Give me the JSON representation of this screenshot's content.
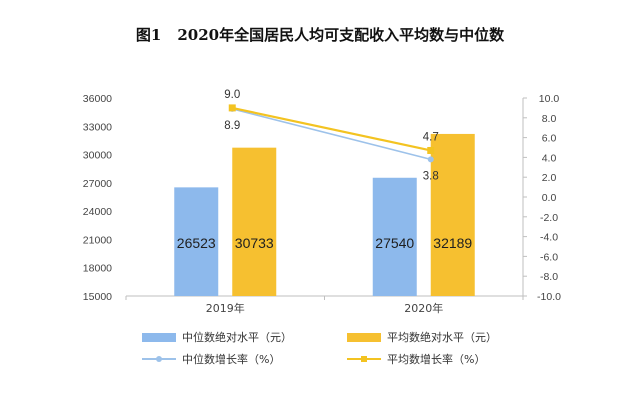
{
  "title": {
    "number": "图1",
    "text": "2020年全国居民人均可支配收入平均数与中位数"
  },
  "colors": {
    "median_bar": "#8db9ec",
    "mean_bar": "#f6c030",
    "median_line": "#9dc2ea",
    "mean_line": "#f3c321",
    "axis": "#bfbfbf"
  },
  "chart_data": {
    "type": "bar",
    "categories": [
      "2019年",
      "2020年"
    ],
    "series": [
      {
        "name": "中位数绝对水平（元）",
        "type": "bar",
        "axis": "left",
        "values": [
          26523,
          27540
        ]
      },
      {
        "name": "平均数绝对水平（元）",
        "type": "bar",
        "axis": "left",
        "values": [
          30733,
          32189
        ]
      },
      {
        "name": "中位数增长率（%）",
        "type": "line",
        "axis": "right",
        "marker": "circle",
        "values": [
          8.9,
          3.8
        ]
      },
      {
        "name": "平均数增长率（%）",
        "type": "line",
        "axis": "right",
        "marker": "square",
        "values": [
          9.0,
          4.7
        ]
      }
    ],
    "y_left": {
      "ylim": [
        15000,
        36000
      ],
      "ticks": [
        "15000",
        "18000",
        "21000",
        "24000",
        "27000",
        "30000",
        "33000",
        "36000"
      ]
    },
    "y_right": {
      "ylim": [
        -10,
        10
      ],
      "ticks": [
        "-10.0",
        "-8.0",
        "-6.0",
        "-4.0",
        "-2.0",
        "0.0",
        "2.0",
        "4.0",
        "6.0",
        "8.0",
        "10.0"
      ]
    },
    "bar_labels": [
      [
        "26523",
        "27540"
      ],
      [
        "30733",
        "32189"
      ]
    ],
    "point_labels": [
      [
        "8.9",
        "3.8"
      ],
      [
        "9.0",
        "4.7"
      ]
    ],
    "legend_position": "bottom",
    "grid": false
  }
}
